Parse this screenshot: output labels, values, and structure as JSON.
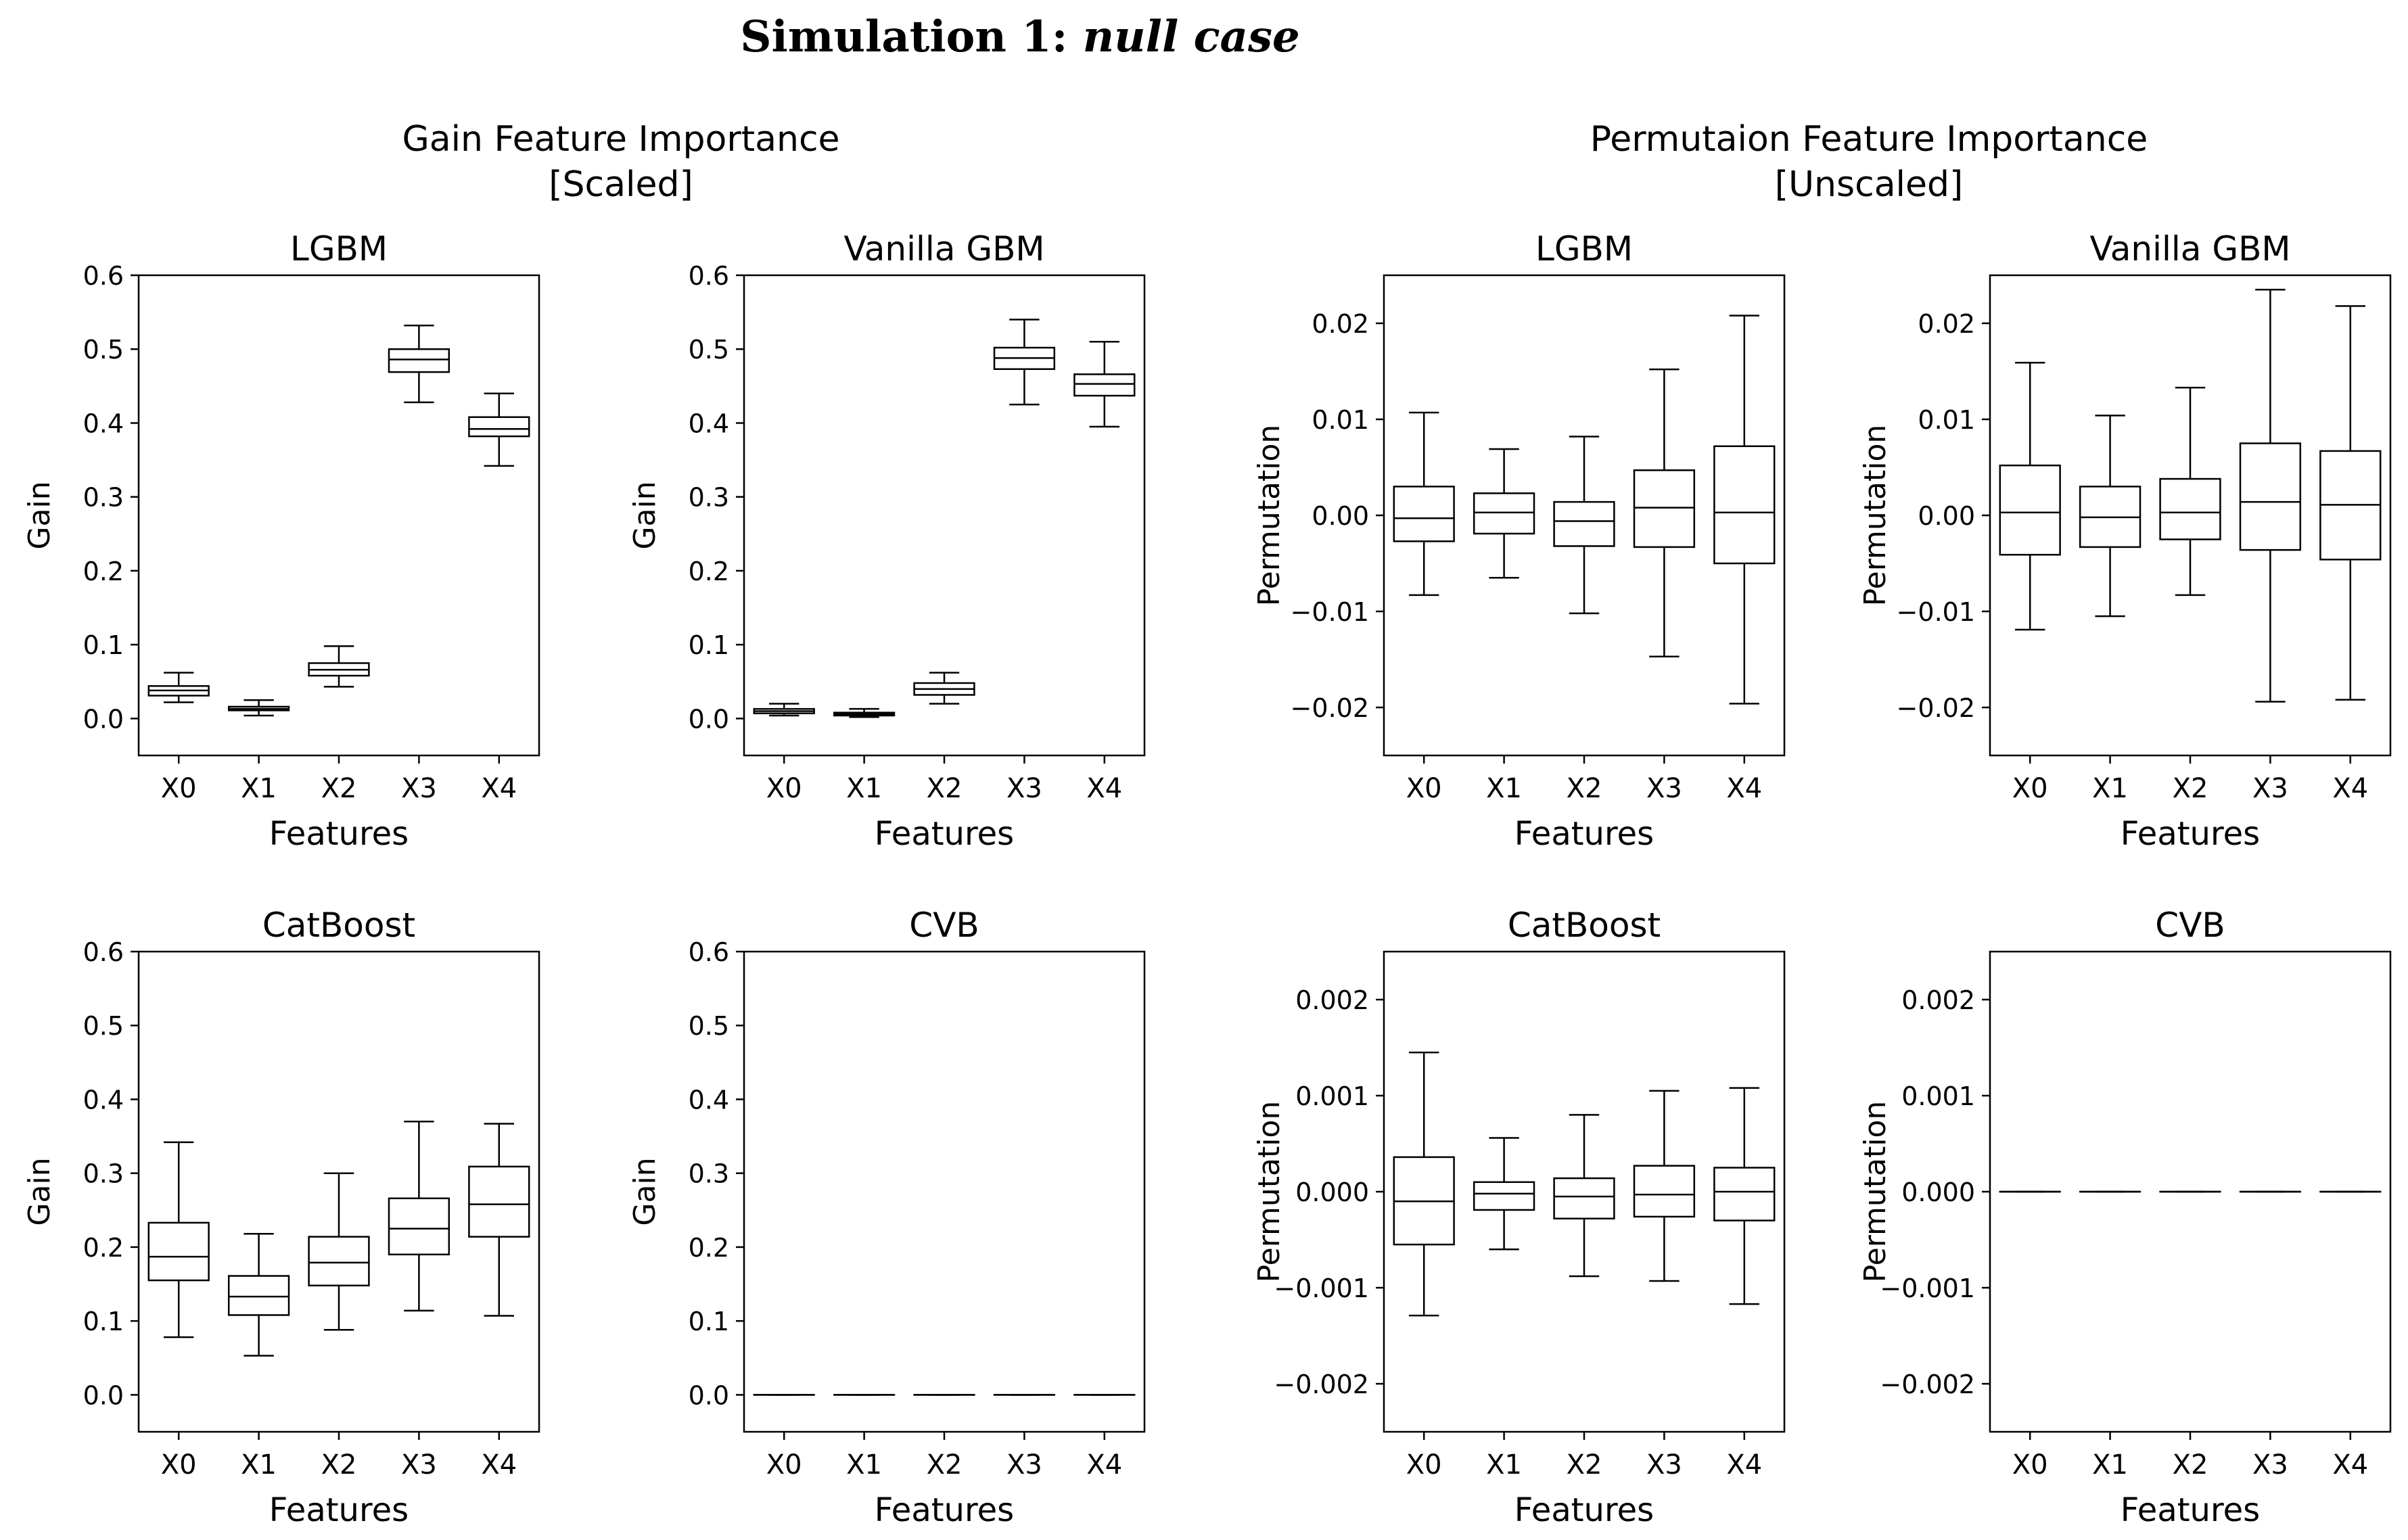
{
  "figure": {
    "title_bold": "Simulation 1:",
    "title_italic": "null case",
    "group_titles": [
      {
        "line1": "Gain Feature Importance",
        "line2": "[Scaled]"
      },
      {
        "line1": "Permutaion Feature Importance",
        "line2": "[Unscaled]"
      }
    ]
  },
  "chart_data": [
    {
      "type": "box",
      "title": "LGBM",
      "xlabel": "Features",
      "ylabel": "Gain",
      "categories": [
        "X0",
        "X1",
        "X2",
        "X3",
        "X4"
      ],
      "ylim": [
        -0.05,
        0.6
      ],
      "yticks": [
        0.0,
        0.1,
        0.2,
        0.3,
        0.4,
        0.5,
        0.6
      ],
      "ytick_labels": [
        "0.0",
        "0.1",
        "0.2",
        "0.3",
        "0.4",
        "0.5",
        "0.6"
      ],
      "boxes": [
        {
          "whisker_low": 0.022,
          "q1": 0.031,
          "median": 0.038,
          "q3": 0.044,
          "whisker_high": 0.062
        },
        {
          "whisker_low": 0.004,
          "q1": 0.011,
          "median": 0.013,
          "q3": 0.016,
          "whisker_high": 0.025
        },
        {
          "whisker_low": 0.043,
          "q1": 0.058,
          "median": 0.066,
          "q3": 0.075,
          "whisker_high": 0.098
        },
        {
          "whisker_low": 0.428,
          "q1": 0.469,
          "median": 0.486,
          "q3": 0.5,
          "whisker_high": 0.532
        },
        {
          "whisker_low": 0.342,
          "q1": 0.382,
          "median": 0.392,
          "q3": 0.408,
          "whisker_high": 0.44
        }
      ]
    },
    {
      "type": "box",
      "title": "Vanilla GBM",
      "xlabel": "Features",
      "ylabel": "Gain",
      "categories": [
        "X0",
        "X1",
        "X2",
        "X3",
        "X4"
      ],
      "ylim": [
        -0.05,
        0.6
      ],
      "yticks": [
        0.0,
        0.1,
        0.2,
        0.3,
        0.4,
        0.5,
        0.6
      ],
      "ytick_labels": [
        "0.0",
        "0.1",
        "0.2",
        "0.3",
        "0.4",
        "0.5",
        "0.6"
      ],
      "boxes": [
        {
          "whisker_low": 0.004,
          "q1": 0.007,
          "median": 0.01,
          "q3": 0.013,
          "whisker_high": 0.02
        },
        {
          "whisker_low": 0.002,
          "q1": 0.004,
          "median": 0.006,
          "q3": 0.008,
          "whisker_high": 0.013
        },
        {
          "whisker_low": 0.02,
          "q1": 0.032,
          "median": 0.04,
          "q3": 0.048,
          "whisker_high": 0.062
        },
        {
          "whisker_low": 0.425,
          "q1": 0.473,
          "median": 0.488,
          "q3": 0.502,
          "whisker_high": 0.54
        },
        {
          "whisker_low": 0.395,
          "q1": 0.437,
          "median": 0.453,
          "q3": 0.466,
          "whisker_high": 0.51
        }
      ]
    },
    {
      "type": "box",
      "title": "LGBM",
      "xlabel": "Features",
      "ylabel": "Permutation",
      "categories": [
        "X0",
        "X1",
        "X2",
        "X3",
        "X4"
      ],
      "ylim": [
        -0.025,
        0.025
      ],
      "yticks": [
        -0.02,
        -0.01,
        0.0,
        0.01,
        0.02
      ],
      "ytick_labels": [
        "−0.02",
        "−0.01",
        "0.00",
        "0.01",
        "0.02"
      ],
      "boxes": [
        {
          "whisker_low": -0.0083,
          "q1": -0.0027,
          "median": -0.0003,
          "q3": 0.003,
          "whisker_high": 0.0107
        },
        {
          "whisker_low": -0.0065,
          "q1": -0.0019,
          "median": 0.0003,
          "q3": 0.0023,
          "whisker_high": 0.0069
        },
        {
          "whisker_low": -0.0102,
          "q1": -0.0032,
          "median": -0.0006,
          "q3": 0.0014,
          "whisker_high": 0.0082
        },
        {
          "whisker_low": -0.0147,
          "q1": -0.0033,
          "median": 0.0008,
          "q3": 0.0047,
          "whisker_high": 0.0152
        },
        {
          "whisker_low": -0.0196,
          "q1": -0.005,
          "median": 0.0003,
          "q3": 0.0072,
          "whisker_high": 0.0208
        }
      ]
    },
    {
      "type": "box",
      "title": "Vanilla GBM",
      "xlabel": "Features",
      "ylabel": "Permutation",
      "categories": [
        "X0",
        "X1",
        "X2",
        "X3",
        "X4"
      ],
      "ylim": [
        -0.025,
        0.025
      ],
      "yticks": [
        -0.02,
        -0.01,
        0.0,
        0.01,
        0.02
      ],
      "ytick_labels": [
        "−0.02",
        "−0.01",
        "0.00",
        "0.01",
        "0.02"
      ],
      "boxes": [
        {
          "whisker_low": -0.0119,
          "q1": -0.0041,
          "median": 0.0003,
          "q3": 0.0052,
          "whisker_high": 0.0159
        },
        {
          "whisker_low": -0.0105,
          "q1": -0.0033,
          "median": -0.0002,
          "q3": 0.003,
          "whisker_high": 0.0104
        },
        {
          "whisker_low": -0.0083,
          "q1": -0.0025,
          "median": 0.0003,
          "q3": 0.0038,
          "whisker_high": 0.0133
        },
        {
          "whisker_low": -0.0194,
          "q1": -0.0036,
          "median": 0.0014,
          "q3": 0.0075,
          "whisker_high": 0.0235
        },
        {
          "whisker_low": -0.0192,
          "q1": -0.0046,
          "median": 0.0011,
          "q3": 0.0067,
          "whisker_high": 0.0218
        }
      ]
    },
    {
      "type": "box",
      "title": "CatBoost",
      "xlabel": "Features",
      "ylabel": "Gain",
      "categories": [
        "X0",
        "X1",
        "X2",
        "X3",
        "X4"
      ],
      "ylim": [
        -0.05,
        0.6
      ],
      "yticks": [
        0.0,
        0.1,
        0.2,
        0.3,
        0.4,
        0.5,
        0.6
      ],
      "ytick_labels": [
        "0.0",
        "0.1",
        "0.2",
        "0.3",
        "0.4",
        "0.5",
        "0.6"
      ],
      "boxes": [
        {
          "whisker_low": 0.078,
          "q1": 0.155,
          "median": 0.187,
          "q3": 0.233,
          "whisker_high": 0.342
        },
        {
          "whisker_low": 0.053,
          "q1": 0.108,
          "median": 0.133,
          "q3": 0.161,
          "whisker_high": 0.218
        },
        {
          "whisker_low": 0.088,
          "q1": 0.148,
          "median": 0.179,
          "q3": 0.214,
          "whisker_high": 0.3
        },
        {
          "whisker_low": 0.114,
          "q1": 0.19,
          "median": 0.225,
          "q3": 0.266,
          "whisker_high": 0.37
        },
        {
          "whisker_low": 0.107,
          "q1": 0.214,
          "median": 0.258,
          "q3": 0.309,
          "whisker_high": 0.367
        }
      ]
    },
    {
      "type": "box",
      "title": "CVB",
      "xlabel": "Features",
      "ylabel": "Gain",
      "categories": [
        "X0",
        "X1",
        "X2",
        "X3",
        "X4"
      ],
      "ylim": [
        -0.05,
        0.6
      ],
      "yticks": [
        0.0,
        0.1,
        0.2,
        0.3,
        0.4,
        0.5,
        0.6
      ],
      "ytick_labels": [
        "0.0",
        "0.1",
        "0.2",
        "0.3",
        "0.4",
        "0.5",
        "0.6"
      ],
      "boxes": [
        {
          "whisker_low": 0.0,
          "q1": 0.0,
          "median": 0.0,
          "q3": 0.0,
          "whisker_high": 0.0
        },
        {
          "whisker_low": 0.0,
          "q1": 0.0,
          "median": 0.0,
          "q3": 0.0,
          "whisker_high": 0.0
        },
        {
          "whisker_low": 0.0,
          "q1": 0.0,
          "median": 0.0,
          "q3": 0.0,
          "whisker_high": 0.0
        },
        {
          "whisker_low": 0.0,
          "q1": 0.0,
          "median": 0.0,
          "q3": 0.0,
          "whisker_high": 0.0
        },
        {
          "whisker_low": 0.0,
          "q1": 0.0,
          "median": 0.0,
          "q3": 0.0,
          "whisker_high": 0.0
        }
      ]
    },
    {
      "type": "box",
      "title": "CatBoost",
      "xlabel": "Features",
      "ylabel": "Permutation",
      "categories": [
        "X0",
        "X1",
        "X2",
        "X3",
        "X4"
      ],
      "ylim": [
        -0.0025,
        0.0025
      ],
      "yticks": [
        -0.002,
        -0.001,
        0.0,
        0.001,
        0.002
      ],
      "ytick_labels": [
        "−0.002",
        "−0.001",
        "0.000",
        "0.001",
        "0.002"
      ],
      "boxes": [
        {
          "whisker_low": -0.00129,
          "q1": -0.00055,
          "median": -0.0001,
          "q3": 0.00036,
          "whisker_high": 0.00145
        },
        {
          "whisker_low": -0.0006,
          "q1": -0.00019,
          "median": -2e-05,
          "q3": 0.0001,
          "whisker_high": 0.00056
        },
        {
          "whisker_low": -0.00088,
          "q1": -0.00028,
          "median": -5e-05,
          "q3": 0.00014,
          "whisker_high": 0.0008
        },
        {
          "whisker_low": -0.00093,
          "q1": -0.00026,
          "median": -3e-05,
          "q3": 0.00027,
          "whisker_high": 0.00105
        },
        {
          "whisker_low": -0.00117,
          "q1": -0.0003,
          "median": 0.0,
          "q3": 0.00025,
          "whisker_high": 0.00108
        }
      ]
    },
    {
      "type": "box",
      "title": "CVB",
      "xlabel": "Features",
      "ylabel": "Permutation",
      "categories": [
        "X0",
        "X1",
        "X2",
        "X3",
        "X4"
      ],
      "ylim": [
        -0.0025,
        0.0025
      ],
      "yticks": [
        -0.002,
        -0.001,
        0.0,
        0.001,
        0.002
      ],
      "ytick_labels": [
        "−0.002",
        "−0.001",
        "0.000",
        "0.001",
        "0.002"
      ],
      "boxes": [
        {
          "whisker_low": 0.0,
          "q1": 0.0,
          "median": 0.0,
          "q3": 0.0,
          "whisker_high": 0.0
        },
        {
          "whisker_low": 0.0,
          "q1": 0.0,
          "median": 0.0,
          "q3": 0.0,
          "whisker_high": 0.0
        },
        {
          "whisker_low": 0.0,
          "q1": 0.0,
          "median": 0.0,
          "q3": 0.0,
          "whisker_high": 0.0
        },
        {
          "whisker_low": 0.0,
          "q1": 0.0,
          "median": 0.0,
          "q3": 0.0,
          "whisker_high": 0.0
        },
        {
          "whisker_low": 0.0,
          "q1": 0.0,
          "median": 0.0,
          "q3": 0.0,
          "whisker_high": 0.0
        }
      ]
    }
  ]
}
